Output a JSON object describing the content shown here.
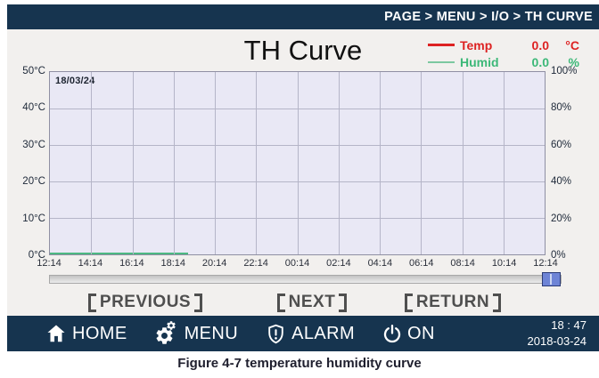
{
  "breadcrumb": "PAGE > MENU > I/O > TH CURVE",
  "title": "TH Curve",
  "legend": {
    "temp": {
      "label": "Temp",
      "value": "0.0",
      "unit": "°C"
    },
    "humid": {
      "label": "Humid",
      "value": "0.0",
      "unit": "%"
    }
  },
  "chart_data": {
    "type": "line",
    "title": "TH Curve",
    "date_label": "18/03/24",
    "x_ticks": [
      "12:14",
      "14:14",
      "16:14",
      "18:14",
      "20:14",
      "22:14",
      "00:14",
      "02:14",
      "04:14",
      "06:14",
      "08:14",
      "10:14",
      "12:14"
    ],
    "x_span_hours": 24,
    "left_axis": {
      "name": "Temperature",
      "unit": "°C",
      "range": [
        0,
        50
      ],
      "ticks": [
        "50°C",
        "40°C",
        "30°C",
        "20°C",
        "10°C",
        "0°C"
      ]
    },
    "right_axis": {
      "name": "Humidity",
      "unit": "%",
      "range": [
        0,
        100
      ],
      "ticks": [
        "100%",
        "80%",
        "60%",
        "40%",
        "20%",
        "0%"
      ]
    },
    "grid": true,
    "legend_position": "top-right",
    "series": [
      {
        "name": "Temp",
        "color": "#dd2222",
        "unit": "°C",
        "current_value": 0.0,
        "constant_value": 0,
        "x_start": "12:14",
        "x_end": "18:47",
        "plotted_fraction": 0.28
      },
      {
        "name": "Humid",
        "color": "#4cb882",
        "unit": "%",
        "current_value": 0.0,
        "constant_value": 0,
        "x_start": "12:14",
        "x_end": "18:47",
        "plotted_fraction": 0.28
      }
    ]
  },
  "scrollbar": {
    "thumb_position": "right"
  },
  "buttons": [
    {
      "label": "PREVIOUS"
    },
    {
      "label": "NEXT"
    },
    {
      "label": "RETURN"
    }
  ],
  "navbar": {
    "items": [
      {
        "icon": "home-icon",
        "label": "HOME"
      },
      {
        "icon": "gear-icon",
        "label": "MENU"
      },
      {
        "icon": "alarm-shield-icon",
        "label": "ALARM"
      },
      {
        "icon": "power-icon",
        "label": "ON"
      }
    ],
    "time": "18 : 47",
    "date": "2018-03-24"
  },
  "caption": "Figure 4-7 temperature humidity curve",
  "colors": {
    "navy": "#16344f",
    "temp_red": "#dd2222",
    "humid_green": "#3cb878",
    "plot_bg": "#e9e8f5",
    "grid": "#b5b5c8",
    "scroll_thumb": "#6e84d6"
  }
}
